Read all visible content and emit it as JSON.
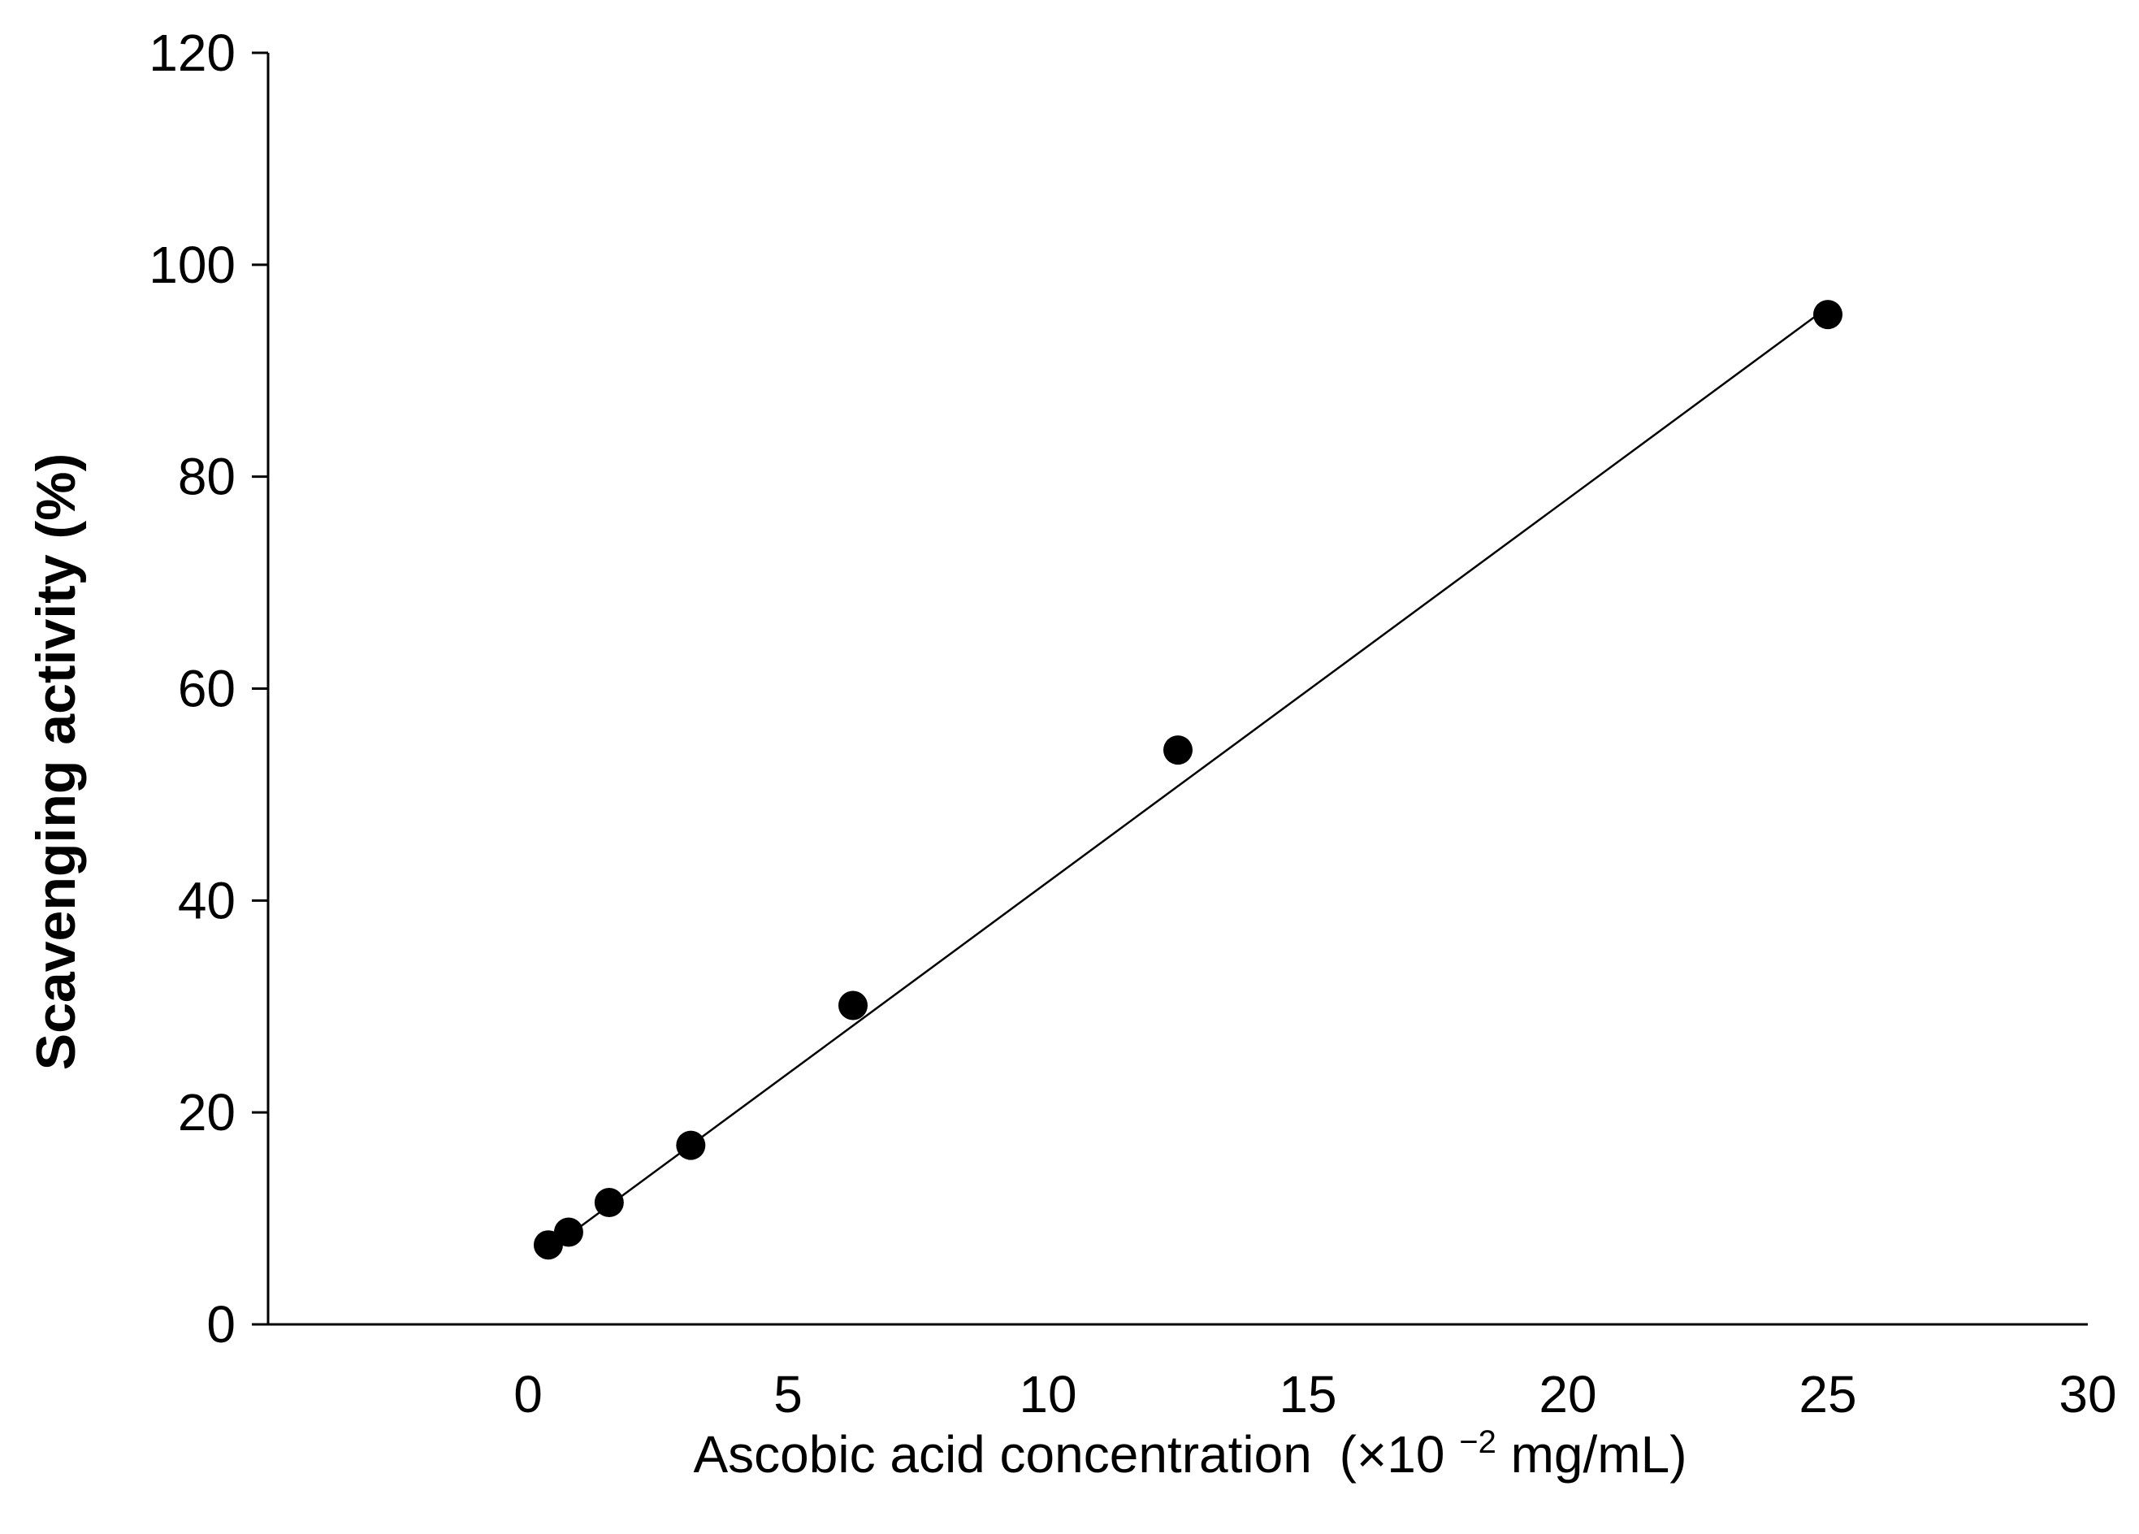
{
  "chart_data": {
    "type": "scatter",
    "title": "",
    "xlabel": "Ascobic acid concentration",
    "xlabel_unit_prefix": "(×10",
    "xlabel_unit_exponent": "−2",
    "xlabel_unit_suffix": " mg/mL)",
    "ylabel": "Scavenging activity (%)",
    "xlim": [
      -5,
      30
    ],
    "ylim": [
      0,
      120
    ],
    "x_ticks": [
      0,
      5,
      10,
      15,
      20,
      25,
      30
    ],
    "y_ticks": [
      0,
      20,
      40,
      60,
      80,
      100,
      120
    ],
    "x_tick_labels": [
      "0",
      "5",
      "10",
      "15",
      "20",
      "25",
      "30"
    ],
    "y_tick_labels": [
      "0",
      "20",
      "40",
      "60",
      "80",
      "100",
      "120"
    ],
    "series": [
      {
        "name": "Ascorbic acid",
        "marker": "filled-circle",
        "color": "#000000",
        "x": [
          0.39,
          0.78,
          1.56,
          3.13,
          6.25,
          12.5,
          25
        ],
        "y": [
          7.5,
          8.7,
          11.5,
          16.9,
          30.1,
          54.2,
          95.3
        ]
      }
    ],
    "trendline": {
      "type": "linear",
      "x_start": 0.39,
      "y_start": 7.0,
      "x_end": 25,
      "y_end": 96.0,
      "color": "#000000"
    },
    "grid": false,
    "legend": "none"
  }
}
